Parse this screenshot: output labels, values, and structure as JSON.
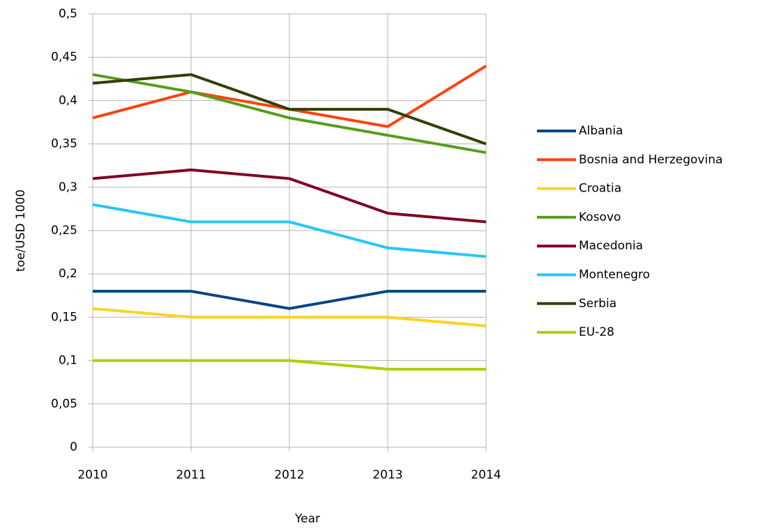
{
  "chart_data": {
    "type": "line",
    "x": [
      2010,
      2011,
      2012,
      2013,
      2014
    ],
    "xlim": [
      2010,
      2014
    ],
    "xticks": [
      2010,
      2011,
      2012,
      2013,
      2014
    ],
    "ylim": [
      0,
      0.5
    ],
    "yticks": [
      0,
      {
        "value": 0.05,
        "label": "0,05"
      },
      {
        "value": 0.1,
        "label": "0,1"
      },
      {
        "value": 0.15,
        "label": "0,15"
      },
      {
        "value": 0.2,
        "label": "0,2"
      },
      {
        "value": 0.25,
        "label": "0,25"
      },
      {
        "value": 0.3,
        "label": "0,3"
      },
      {
        "value": 0.35,
        "label": "0,35"
      },
      {
        "value": 0.4,
        "label": "0,4"
      },
      {
        "value": 0.45,
        "label": "0,45"
      },
      {
        "value": 0.5,
        "label": "0,5"
      }
    ],
    "x_label": "Year",
    "y_label": "toe/USD 1000",
    "grid": true,
    "legend": "right",
    "series": [
      {
        "name": "Albania",
        "color": "#004586",
        "values": [
          0.18,
          0.18,
          0.16,
          0.18,
          0.18
        ]
      },
      {
        "name": "Bosnia and Herzegovina",
        "color": "#ff420e",
        "values": [
          0.38,
          0.41,
          0.39,
          0.37,
          0.44
        ]
      },
      {
        "name": "Croatia",
        "color": "#ffd320",
        "values": [
          0.16,
          0.15,
          0.15,
          0.15,
          0.14
        ]
      },
      {
        "name": "Kosovo",
        "color": "#579d1c",
        "values": [
          0.43,
          0.41,
          0.38,
          0.36,
          0.34
        ]
      },
      {
        "name": "Macedonia",
        "color": "#7e0021",
        "values": [
          0.31,
          0.32,
          0.31,
          0.27,
          0.26
        ]
      },
      {
        "name": "Montenegro",
        "color": "#26c6f8",
        "values": [
          0.28,
          0.26,
          0.26,
          0.23,
          0.22
        ]
      },
      {
        "name": "Serbia",
        "color": "#314004",
        "values": [
          0.42,
          0.43,
          0.39,
          0.39,
          0.35
        ]
      },
      {
        "name": "EU-28",
        "color": "#aecf00",
        "values": [
          0.1,
          0.1,
          0.1,
          0.09,
          0.09
        ]
      }
    ]
  }
}
